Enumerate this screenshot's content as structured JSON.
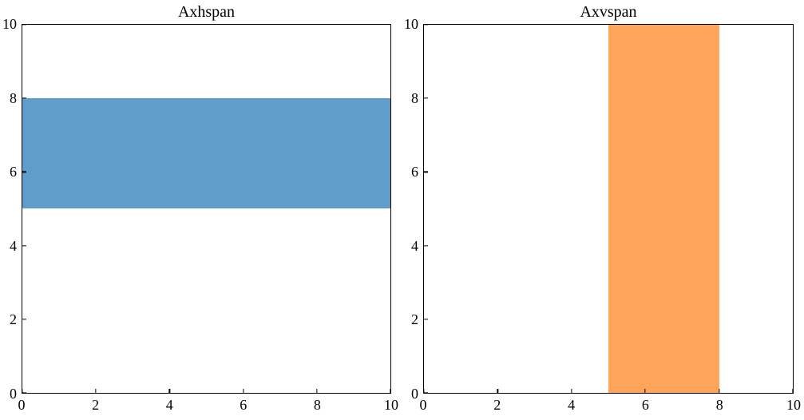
{
  "figure": {
    "background_color": "#ffffff",
    "axis_color": "#000000",
    "text_color": "#000000",
    "tick_direction": "in"
  },
  "chart_data": [
    {
      "type": "area",
      "title": "Axhspan",
      "xlabel": "",
      "ylabel": "",
      "xlim": [
        0,
        10
      ],
      "ylim": [
        0,
        10
      ],
      "xticks": [
        0,
        2,
        4,
        6,
        8,
        10
      ],
      "yticks": [
        0,
        2,
        4,
        6,
        8,
        10
      ],
      "grid": false,
      "span": {
        "orientation": "horizontal",
        "from": 5,
        "to": 8,
        "color": "#5f9ecb"
      }
    },
    {
      "type": "area",
      "title": "Axvspan",
      "xlabel": "",
      "ylabel": "",
      "xlim": [
        0,
        10
      ],
      "ylim": [
        0,
        10
      ],
      "xticks": [
        0,
        2,
        4,
        6,
        8,
        10
      ],
      "yticks": [
        0,
        2,
        4,
        6,
        8,
        10
      ],
      "grid": false,
      "span": {
        "orientation": "vertical",
        "from": 5,
        "to": 8,
        "color": "#ffa55a"
      }
    }
  ]
}
